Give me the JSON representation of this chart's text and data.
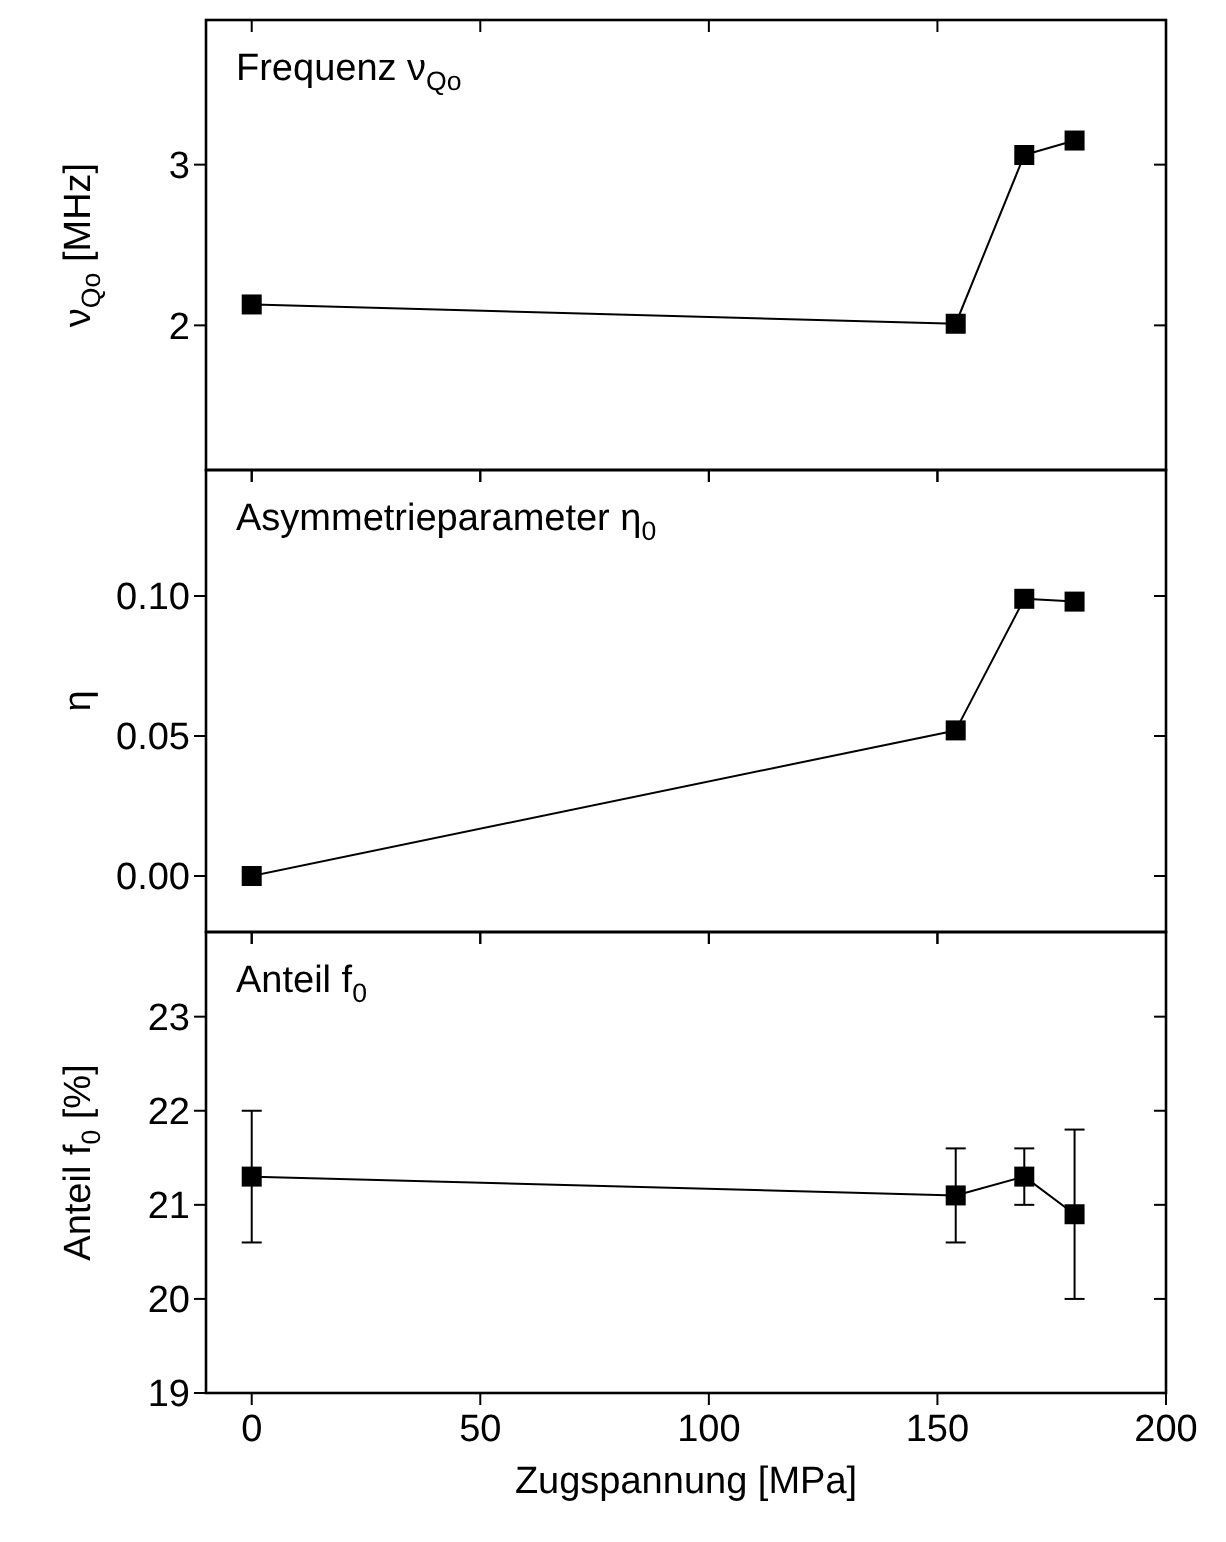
{
  "chart_data": [
    {
      "type": "line",
      "annotations": [
        "Frequenz ν$_{Qo}$"
      ],
      "ylabel": "ν$_{Qo}$ [MHz]",
      "x": [
        0,
        154,
        169,
        180
      ],
      "xlim": [
        -10,
        200
      ],
      "xticks": [
        {
          "value": 0,
          "label": null
        },
        {
          "value": 50,
          "label": null
        },
        {
          "value": 100,
          "label": null
        },
        {
          "value": 150,
          "label": null
        },
        {
          "value": 200,
          "label": null
        }
      ],
      "ylim": [
        1.1,
        3.9
      ],
      "yticks": [
        2,
        3
      ],
      "tick_labels": "y",
      "marker": "square",
      "line_style": "solid",
      "series": [
        {
          "color": "#000000",
          "values": [
            2.13,
            2.01,
            3.06,
            3.15
          ]
        }
      ]
    },
    {
      "type": "line",
      "annotations": [
        "Asymmetrieparameter η$_{0}$"
      ],
      "ylabel": "η",
      "x": [
        0,
        154,
        169,
        180
      ],
      "xlim": [
        -10,
        200
      ],
      "xticks": [
        {
          "value": 0,
          "label": null
        },
        {
          "value": 50,
          "label": null
        },
        {
          "value": 100,
          "label": null
        },
        {
          "value": 150,
          "label": null
        },
        {
          "value": 200,
          "label": null
        }
      ],
      "ylim": [
        -0.02,
        0.145
      ],
      "yticks": [
        {
          "value": 0,
          "label": "0.00"
        },
        {
          "value": 0.05,
          "label": "0.05"
        },
        {
          "value": 0.1,
          "label": "0.10"
        }
      ],
      "tick_labels": "y",
      "marker": "square",
      "line_style": "solid",
      "series": [
        {
          "color": "#000000",
          "values": [
            0,
            0.052,
            0.099,
            0.098
          ]
        }
      ]
    },
    {
      "type": "line",
      "annotations": [
        "Anteil f$_{0}$"
      ],
      "ylabel": "Anteil f$_{0}$ [%]",
      "xlabel": "Zugspannung [MPa]",
      "x": [
        0,
        154,
        169,
        180
      ],
      "xlim": [
        -10,
        200
      ],
      "xticks": [
        0,
        50,
        100,
        150,
        200
      ],
      "ylim": [
        19,
        23.9
      ],
      "yticks": [
        19,
        20,
        21,
        22,
        23
      ],
      "marker": "square",
      "line_style": "solid",
      "series": [
        {
          "color": "#000000",
          "values": [
            21.3,
            21.1,
            21.3,
            20.9
          ],
          "errors": [
            [
              20.6,
              22.0
            ],
            [
              20.6,
              21.6
            ],
            [
              21.0,
              21.6
            ],
            [
              20.0,
              21.8
            ]
          ]
        }
      ]
    }
  ]
}
